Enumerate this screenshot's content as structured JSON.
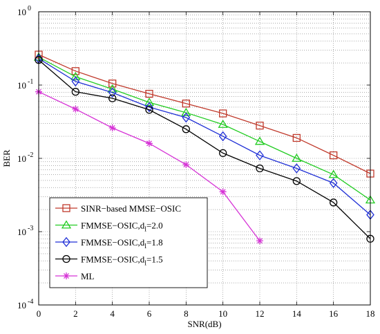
{
  "chart_data": {
    "type": "line",
    "title": "",
    "xlabel": "SNR(dB)",
    "ylabel": "BER",
    "xlim": [
      0,
      18
    ],
    "ylim": [
      0.0001,
      1
    ],
    "yscale": "log",
    "grid": true,
    "legend_position": "bottom-left",
    "x": [
      0,
      2,
      4,
      6,
      8,
      10,
      12,
      14,
      16,
      18
    ],
    "x_tick_labels": [
      "0",
      "2",
      "4",
      "6",
      "8",
      "10",
      "12",
      "14",
      "16",
      "18"
    ],
    "y_ticks": [
      {
        "base": "10",
        "exp": "0",
        "value": 1
      },
      {
        "base": "10",
        "exp": "-1",
        "value": 0.1
      },
      {
        "base": "10",
        "exp": "-2",
        "value": 0.01
      },
      {
        "base": "10",
        "exp": "-3",
        "value": 0.001
      },
      {
        "base": "10",
        "exp": "-4",
        "value": 0.0001
      }
    ],
    "series": [
      {
        "name": "SINR−based MMSE−OSIC",
        "color": "#c0392b",
        "marker": "square",
        "values": [
          0.26,
          0.155,
          0.105,
          0.076,
          0.056,
          0.041,
          0.028,
          0.019,
          0.011,
          0.0062
        ]
      },
      {
        "name_prefix": "FMMSE−OSIC,d",
        "name_sub": "l",
        "name_suffix": "=2.0",
        "color": "#22cc22",
        "marker": "triangle",
        "values": [
          0.24,
          0.13,
          0.088,
          0.058,
          0.042,
          0.029,
          0.017,
          0.01,
          0.006,
          0.0027
        ]
      },
      {
        "name_prefix": "FMMSE−OSIC,d",
        "name_sub": "l",
        "name_suffix": "=1.8",
        "color": "#1f2fd6",
        "marker": "diamond",
        "values": [
          0.23,
          0.112,
          0.079,
          0.05,
          0.036,
          0.02,
          0.011,
          0.0073,
          0.0046,
          0.0017
        ]
      },
      {
        "name_prefix": "FMMSE−OSIC,d",
        "name_sub": "l",
        "name_suffix": "=1.5",
        "color": "#000000",
        "marker": "circle",
        "values": [
          0.22,
          0.081,
          0.066,
          0.046,
          0.025,
          0.0118,
          0.0073,
          0.0049,
          0.0025,
          0.0008
        ]
      },
      {
        "name": "ML",
        "color": "#d633d6",
        "marker": "star",
        "values": [
          0.081,
          0.047,
          0.026,
          0.016,
          0.0082,
          0.0035,
          0.00075,
          null,
          null,
          null
        ]
      }
    ]
  }
}
